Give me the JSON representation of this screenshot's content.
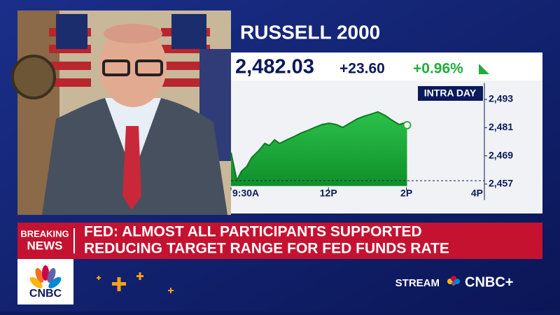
{
  "ticker": {
    "title": "RUSSELL 2000",
    "price": "2,482.03",
    "change": "+23.60",
    "percent": "+0.96%"
  },
  "chart_data": {
    "type": "area",
    "label": "INTRA DAY",
    "x": [
      0,
      9,
      16,
      24,
      32,
      43,
      52,
      59,
      67,
      75,
      86,
      97,
      108,
      119,
      129,
      140,
      151,
      162,
      172,
      183,
      194,
      205,
      216,
      226,
      237,
      248,
      259,
      265,
      271
    ],
    "values": [
      2470.4,
      2458.5,
      2462.4,
      2464.4,
      2468.3,
      2471.3,
      2474.3,
      2473.4,
      2475.8,
      2474.3,
      2475.8,
      2477.2,
      2478.7,
      2479.9,
      2481.1,
      2482.3,
      2482.9,
      2482.3,
      2481.1,
      2482.9,
      2484.7,
      2485.9,
      2486.8,
      2487.7,
      2486.2,
      2484.1,
      2482.3,
      2482.9,
      2482.03
    ],
    "color": "#1fae3a",
    "line_color": "#0d7a22",
    "baseline": 2458.43,
    "xlim": [
      0,
      390
    ],
    "xticks": [
      {
        "value": 0,
        "label": "9:30A"
      },
      {
        "value": 150,
        "label": "12P"
      },
      {
        "value": 270,
        "label": "2P"
      },
      {
        "value": 390,
        "label": "4P"
      }
    ],
    "ylim": [
      2455,
      2500
    ],
    "yticks": [
      {
        "value": 2457,
        "label": "2,457"
      },
      {
        "value": 2469,
        "label": "2,469"
      },
      {
        "value": 2481,
        "label": "2,481"
      },
      {
        "value": 2493,
        "label": "2,493"
      }
    ]
  },
  "banner": {
    "tag": [
      "BREAKING",
      "NEWS"
    ],
    "headline": [
      "FED: ALMOST ALL PARTICIPANTS SUPPORTED",
      "REDUCING TARGET RANGE FOR FED FUNDS RATE"
    ]
  },
  "footer": {
    "logo": "CNBC",
    "stream": "STREAM",
    "brand": "CNBC+"
  }
}
